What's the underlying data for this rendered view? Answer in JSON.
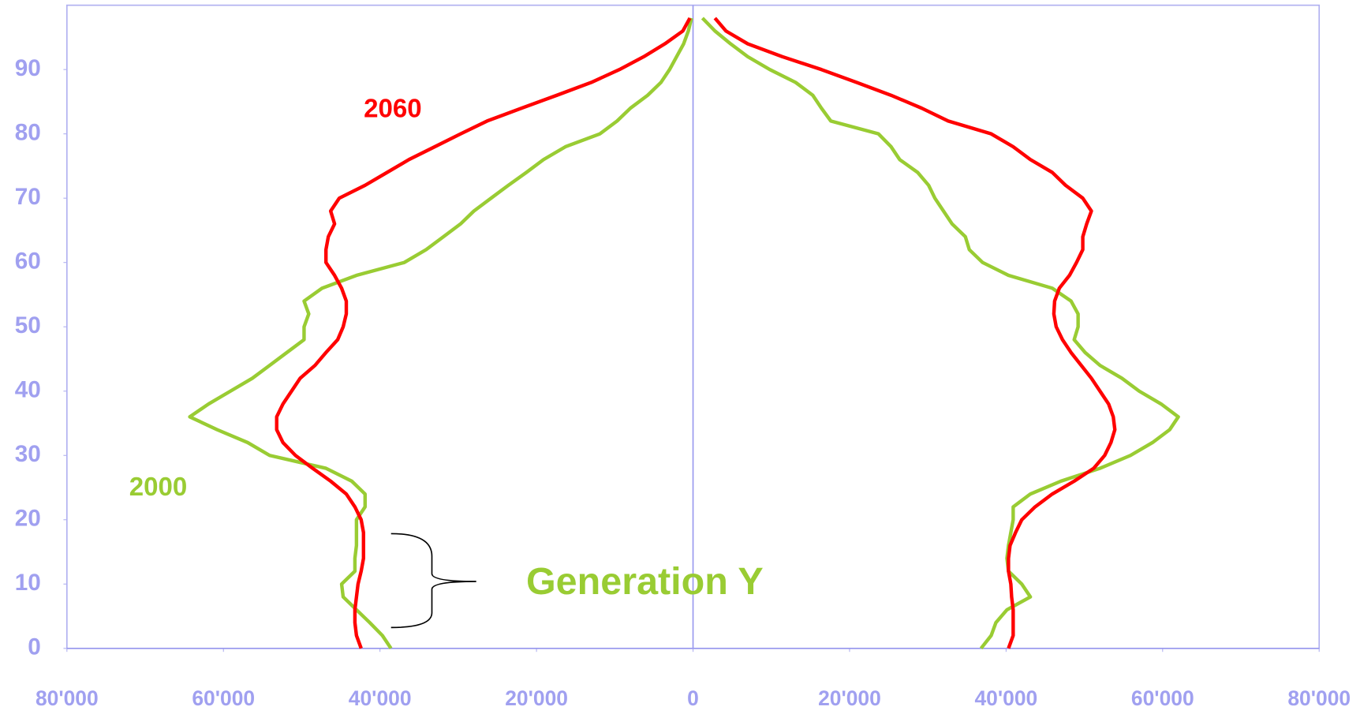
{
  "chart_data": {
    "type": "line",
    "orientation": "horizontal",
    "y": [
      0,
      2,
      4,
      6,
      8,
      10,
      12,
      14,
      16,
      18,
      20,
      22,
      24,
      26,
      28,
      30,
      32,
      34,
      36,
      38,
      40,
      42,
      44,
      46,
      48,
      50,
      52,
      54,
      56,
      58,
      60,
      62,
      64,
      66,
      68,
      70,
      72,
      74,
      76,
      78,
      80,
      82,
      84,
      86,
      88,
      90,
      92,
      94,
      96,
      98
    ],
    "series": [
      {
        "color": "#99cc33",
        "values": [
          -38600,
          -39700,
          -41300,
          -43000,
          -44700,
          -44900,
          -43200,
          -43200,
          -43000,
          -43000,
          -43000,
          -41900,
          -41900,
          -43600,
          -46900,
          -54100,
          -56900,
          -60800,
          -64300,
          -61900,
          -59100,
          -56300,
          -54100,
          -51900,
          -49700,
          -49700,
          -49100,
          -49700,
          -47400,
          -43000,
          -36900,
          -34100,
          -31900,
          -29700,
          -28000,
          -25800,
          -23600,
          -21300,
          -19100,
          -16300,
          -11900,
          -9700,
          -8000,
          -5800,
          -4100,
          -3000,
          -2100,
          -1200,
          -600,
          -200
        ]
      },
      {
        "color": "#99cc33",
        "values": [
          36800,
          38100,
          38700,
          40100,
          43100,
          42000,
          40300,
          40100,
          40300,
          40600,
          40900,
          40900,
          43100,
          47000,
          52000,
          55900,
          58700,
          60900,
          62000,
          59800,
          57000,
          54800,
          52000,
          50100,
          48700,
          49200,
          49200,
          48300,
          45900,
          40300,
          37000,
          35300,
          34800,
          33100,
          32000,
          30900,
          30100,
          28700,
          26400,
          25300,
          23700,
          17600,
          16400,
          15300,
          13100,
          9800,
          7000,
          4800,
          2800,
          1200
        ]
      },
      {
        "color": "#ff0000",
        "values": [
          -42400,
          -43000,
          -43200,
          -43200,
          -43000,
          -42800,
          -42400,
          -42100,
          -42100,
          -42100,
          -42400,
          -43200,
          -44300,
          -46300,
          -48600,
          -50800,
          -52400,
          -53200,
          -53200,
          -52400,
          -51300,
          -50200,
          -48300,
          -46900,
          -45400,
          -44700,
          -44300,
          -44300,
          -44900,
          -45800,
          -46900,
          -46900,
          -46600,
          -45800,
          -46300,
          -45200,
          -41900,
          -39100,
          -36300,
          -33000,
          -29700,
          -26300,
          -21900,
          -17400,
          -13000,
          -9400,
          -6300,
          -3600,
          -1300,
          -400
        ]
      },
      {
        "color": "#ff0000",
        "values": [
          40300,
          40900,
          40900,
          40900,
          40700,
          40600,
          40300,
          40300,
          40500,
          41200,
          42000,
          43700,
          45900,
          48700,
          51200,
          52600,
          53400,
          53900,
          53700,
          53100,
          52000,
          50900,
          49600,
          48300,
          47200,
          46400,
          46100,
          46200,
          46800,
          48100,
          49000,
          49800,
          49800,
          50300,
          50900,
          49800,
          47600,
          45900,
          43100,
          40900,
          38100,
          32600,
          29200,
          25300,
          20900,
          16400,
          11400,
          7000,
          4200,
          2800
        ]
      }
    ],
    "xlim": [
      -80000,
      80000
    ],
    "xticks": [
      {
        "value": -80000,
        "label": "80'000"
      },
      {
        "value": -60000,
        "label": "60'000"
      },
      {
        "value": -40000,
        "label": "40'000"
      },
      {
        "value": -20000,
        "label": "20'000"
      },
      0,
      {
        "value": 20000,
        "label": "20'000"
      },
      {
        "value": 40000,
        "label": "40'000"
      },
      {
        "value": 60000,
        "label": "60'000"
      },
      {
        "value": 80000,
        "label": "80'000"
      }
    ],
    "ylim": [
      0,
      100
    ],
    "yticks": [
      0,
      10,
      20,
      30,
      40,
      50,
      60,
      70,
      80,
      90
    ],
    "annotations": [
      {
        "text": "2060",
        "color": "#ff0000"
      },
      {
        "text": "2000",
        "color": "#99cc33"
      },
      {
        "text": "Generation Y",
        "color": "#99cc33"
      }
    ]
  }
}
